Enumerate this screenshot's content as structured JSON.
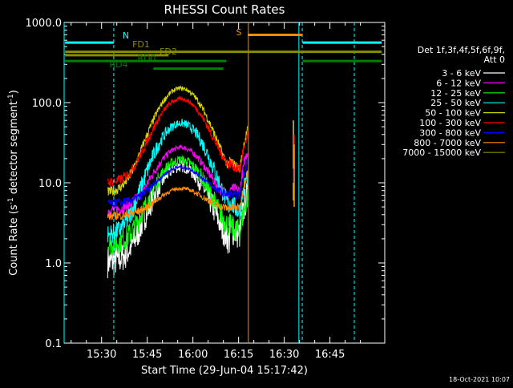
{
  "chart_data": {
    "type": "line",
    "title": "RHESSI Count Rates",
    "xlabel": "Start Time (29-Jun-04 15:17:42)",
    "ylabel_prefix": "Count Rate (s",
    "ylabel_sup": "-1",
    "ylabel_mid": " detector segment",
    "ylabel_sup2": "-1",
    "ylabel_suffix": ")",
    "yscale": "log",
    "ylim": [
      0.1,
      1000.0
    ],
    "xlim_min": [
      17.7,
      123.0
    ],
    "x_unit": "minutes after 15:00",
    "xticks": [
      {
        "value": 30,
        "label": "15:30"
      },
      {
        "value": 45,
        "label": "15:45"
      },
      {
        "value": 60,
        "label": "16:00"
      },
      {
        "value": 75,
        "label": "16:15"
      },
      {
        "value": 90,
        "label": "16:30"
      },
      {
        "value": 105,
        "label": "16:45"
      }
    ],
    "yticks": [
      {
        "value": 0.1,
        "label": "0.1"
      },
      {
        "value": 1.0,
        "label": "1.0"
      },
      {
        "value": 10.0,
        "label": "10.0"
      },
      {
        "value": 100.0,
        "label": "100.0"
      },
      {
        "value": 1000.0,
        "label": "1000.0"
      }
    ],
    "legend_header": [
      "Det 1f,3f,4f,5f,6f,9f,",
      "Att 0"
    ],
    "legend_position": "right",
    "series": [
      {
        "name": "3 - 6 keV",
        "color": "#ffffff",
        "baseline": 1.0,
        "peak": 16,
        "noise": 0.18,
        "end": 3.0
      },
      {
        "name": "6 - 12 keV",
        "color": "#ff00ff",
        "baseline": 4.5,
        "peak": 27,
        "noise": 0.07,
        "end": 10
      },
      {
        "name": "12 - 25 keV",
        "color": "#00ff00",
        "baseline": 1.7,
        "peak": 19,
        "noise": 0.14,
        "end": 2.5
      },
      {
        "name": "25 - 50 keV",
        "color": "#00ffff",
        "baseline": 2.2,
        "peak": 55,
        "noise": 0.12,
        "end": 5
      },
      {
        "name": "50 - 100 keV",
        "color": "#d4d400",
        "baseline": 7.5,
        "peak": 150,
        "noise": 0.06,
        "end": 18
      },
      {
        "name": "100 - 300 keV",
        "color": "#ff0000",
        "baseline": 10,
        "peak": 110,
        "noise": 0.06,
        "end": 15
      },
      {
        "name": "300 - 800 keV",
        "color": "#0000ff",
        "baseline": 5.5,
        "peak": 15,
        "noise": 0.05,
        "end": 7
      },
      {
        "name": "800 - 7000 keV",
        "color": "#ff8c00",
        "baseline": 3.8,
        "peak": 8,
        "noise": 0.05,
        "end": 5
      },
      {
        "name": "7000 - 15000 keV",
        "color": "#8b8b00",
        "baseline": 0,
        "peak": 0,
        "noise": 0,
        "end": 0
      }
    ],
    "data_window": {
      "start": 32.0,
      "end": 78.0,
      "flare_center": 56.0,
      "flare_width": 9.0
    },
    "post_burst": {
      "x": 93.0,
      "values": [
        {
          "color": "#d4d400",
          "lo": 6,
          "hi": 60
        },
        {
          "color": "#ff0000",
          "lo": 15,
          "hi": 40
        },
        {
          "color": "#0000ff",
          "lo": 10,
          "hi": 15
        },
        {
          "color": "#ff8c00",
          "lo": 5,
          "hi": 30
        }
      ]
    },
    "flags": [
      {
        "label": "N",
        "color": "#00ffff",
        "y": 560,
        "segments": [
          [
            18,
            34
          ],
          [
            96,
            122
          ]
        ]
      },
      {
        "label": "S",
        "color": "#ff8c00",
        "y": 700,
        "segments": [
          [
            78,
            96
          ]
        ]
      },
      {
        "label": "FD1",
        "color": "#8b8b00",
        "y": 430,
        "segments": [
          [
            18,
            122
          ]
        ]
      },
      {
        "label": "FD2",
        "color": "#8b8b00",
        "y": 390,
        "segments": [
          [
            18,
            52
          ]
        ]
      },
      {
        "label": "RD0",
        "color": "#008000",
        "y": 330,
        "segments": [
          [
            18,
            71
          ],
          [
            96,
            122
          ]
        ]
      },
      {
        "label": "RD4",
        "color": "#008000",
        "y": 265,
        "segments": [
          [
            47,
            70
          ]
        ]
      }
    ],
    "vlines": [
      {
        "x": 17.7,
        "color": "#00ffff",
        "style": "solid"
      },
      {
        "x": 34.0,
        "color": "#00ffff",
        "style": "dashed"
      },
      {
        "x": 78.2,
        "color": "#ff8c00",
        "style": "solid"
      },
      {
        "x": 94.8,
        "color": "#00ffff",
        "style": "solid"
      },
      {
        "x": 95.9,
        "color": "#00ffff",
        "style": "dashed"
      },
      {
        "x": 113.0,
        "color": "#00ffff",
        "style": "dashed"
      }
    ]
  },
  "footer": {
    "date": "18-Oct-2021 10:07"
  }
}
